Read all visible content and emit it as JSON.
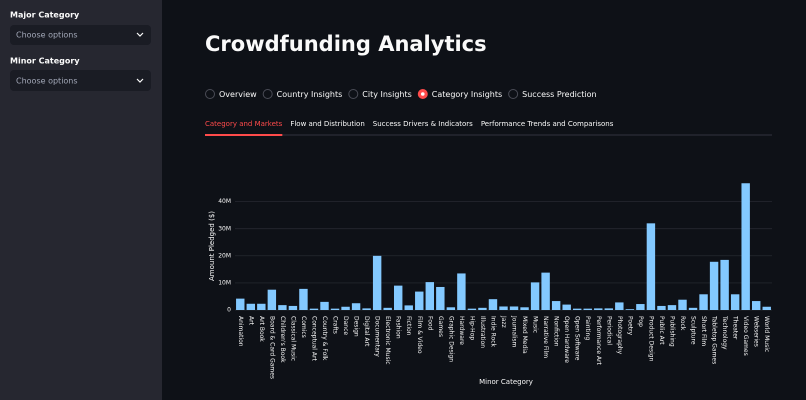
{
  "sidebar": {
    "fields": [
      {
        "label": "Major Category",
        "placeholder": "Choose options"
      },
      {
        "label": "Minor Category",
        "placeholder": "Choose options"
      }
    ]
  },
  "header": {
    "title": "Crowdfunding Analytics"
  },
  "radios": {
    "options": [
      "Overview",
      "Country Insights",
      "City Insights",
      "Category Insights",
      "Success Prediction"
    ],
    "selected": 3
  },
  "tabs": {
    "options": [
      "Category and Markets",
      "Flow and Distribution",
      "Success Drivers & Indicators",
      "Performance Trends and Comparisons"
    ],
    "selected": 0
  },
  "chart_data": {
    "type": "bar",
    "x_label": "Minor Category",
    "y_label": "Amount Pledged ($)",
    "color": "#83c9ff",
    "grid": true,
    "ylim": [
      0,
      48
    ],
    "yticks": [
      0,
      {
        "value": 10,
        "label": "10M"
      },
      {
        "value": 20,
        "label": "20M"
      },
      {
        "value": 30,
        "label": "30M"
      },
      {
        "value": 40,
        "label": "40M"
      }
    ],
    "categories": [
      "Animation",
      "Art",
      "Art Book",
      "Board & Card Games",
      "Children's Book",
      "Classical Music",
      "Comics",
      "Conceptual Art",
      "Country & Folk",
      "Crafts",
      "Dance",
      "Design",
      "Digital Art",
      "Documentary",
      "Electronic Music",
      "Fashion",
      "Fiction",
      "Film & Video",
      "Food",
      "Games",
      "Graphic Design",
      "Hardware",
      "Hip-Hop",
      "Illustration",
      "Indie Rock",
      "Jazz",
      "Journalism",
      "Mixed Media",
      "Music",
      "Narrative Film",
      "Nonfiction",
      "Open Hardware",
      "Open Software",
      "Painting",
      "Performance Art",
      "Periodical",
      "Photography",
      "Poetry",
      "Pop",
      "Product Design",
      "Public Art",
      "Publishing",
      "Rock",
      "Sculpture",
      "Short Film",
      "Tabletop Games",
      "Technology",
      "Theater",
      "Video Games",
      "Webseries",
      "World Music"
    ],
    "values": [
      4.2,
      2.3,
      2.3,
      7.5,
      1.8,
      1.5,
      7.8,
      0.5,
      3,
      0.5,
      1.2,
      2.5,
      0.6,
      20,
      0.8,
      9,
      1.7,
      6.8,
      10.3,
      8.5,
      1,
      13.5,
      0.5,
      0.8,
      4,
      1.3,
      1.3,
      1,
      10.2,
      13.8,
      3.3,
      2,
      0.5,
      0.5,
      0.6,
      0.6,
      2.8,
      0.3,
      2.2,
      32,
      1.5,
      1.8,
      3.8,
      0.8,
      5.8,
      17.8,
      18.5,
      5.8,
      46.8,
      3.3,
      1.2
    ]
  }
}
